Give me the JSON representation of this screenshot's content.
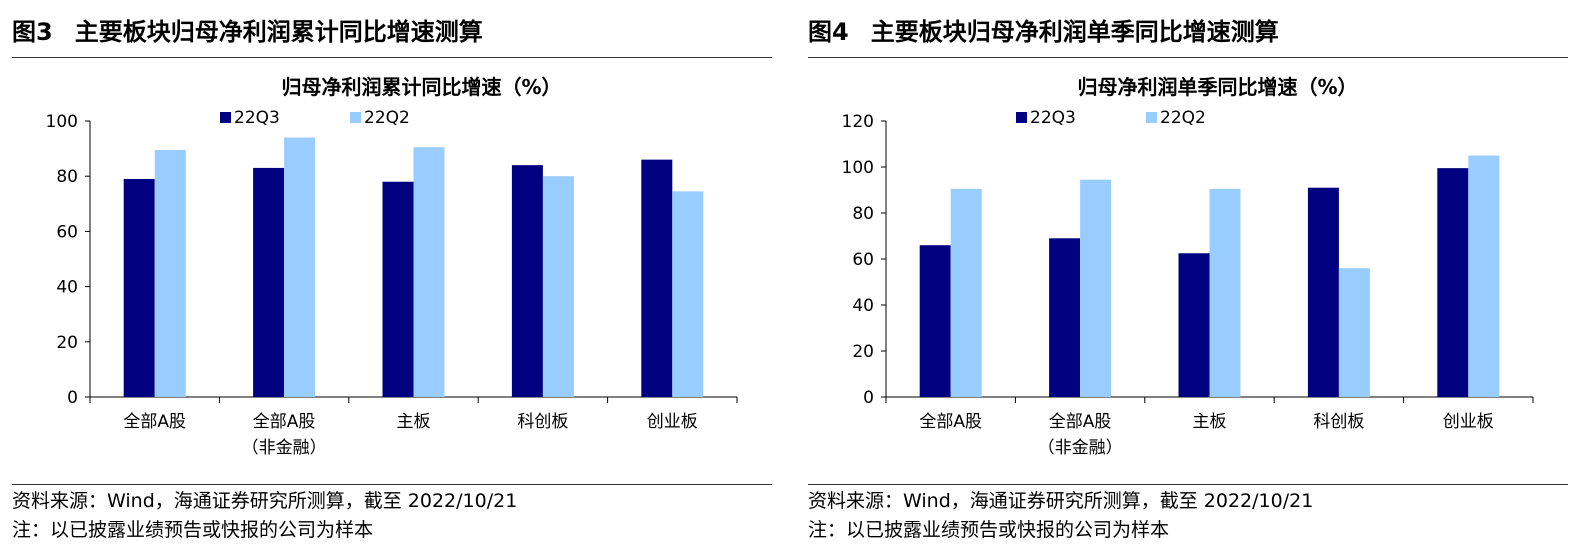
{
  "figures": [
    {
      "fig_num": "图3",
      "title": "主要板块归母净利润累计同比增速测算",
      "source": "资料来源：Wind，海通证券研究所测算，截至 2022/10/21",
      "note": "注：以已披露业绩预告或快报的公司为样本"
    },
    {
      "fig_num": "图4",
      "title": "主要板块归母净利润单季同比增速测算",
      "source": "资料来源：Wind，海通证券研究所测算，截至 2022/10/21",
      "note": "注：以已披露业绩预告或快报的公司为样本"
    }
  ],
  "colors": {
    "22Q3": "#000080",
    "22Q2": "#99ccff"
  },
  "chart_data": [
    {
      "type": "bar",
      "title": "归母净利润累计同比增速（%）",
      "categories": [
        [
          "全部A股"
        ],
        [
          "全部A股",
          "（非金融）"
        ],
        [
          "主板"
        ],
        [
          "科创板"
        ],
        [
          "创业板"
        ]
      ],
      "series": [
        {
          "name": "22Q3",
          "values": [
            79,
            83,
            78,
            84,
            86
          ]
        },
        {
          "name": "22Q2",
          "values": [
            89.5,
            94,
            90.5,
            80,
            74.5
          ]
        }
      ],
      "ylim": [
        0,
        100
      ],
      "yticks": [
        0,
        20,
        40,
        60,
        80,
        100
      ],
      "legend": "top-center",
      "grid": false
    },
    {
      "type": "bar",
      "title": "归母净利润单季同比增速（%）",
      "categories": [
        [
          "全部A股"
        ],
        [
          "全部A股",
          "（非金融）"
        ],
        [
          "主板"
        ],
        [
          "科创板"
        ],
        [
          "创业板"
        ]
      ],
      "series": [
        {
          "name": "22Q3",
          "values": [
            66,
            69,
            62.5,
            91,
            99.5
          ]
        },
        {
          "name": "22Q2",
          "values": [
            90.5,
            94.5,
            90.5,
            56,
            105
          ]
        }
      ],
      "ylim": [
        0,
        120
      ],
      "yticks": [
        0,
        20,
        40,
        60,
        80,
        100,
        120
      ],
      "legend": "top-center",
      "grid": false
    }
  ]
}
